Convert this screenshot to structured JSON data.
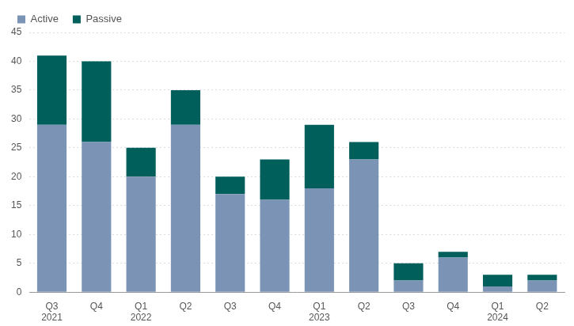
{
  "chart_data": {
    "type": "bar",
    "stacked": true,
    "categories": [
      "Q3\n2021",
      "Q4",
      "Q1\n2022",
      "Q2",
      "Q3",
      "Q4",
      "Q1\n2023",
      "Q2",
      "Q3",
      "Q4",
      "Q1\n2024",
      "Q2"
    ],
    "series": [
      {
        "name": "Active",
        "color": "#7b94b5",
        "values": [
          29,
          26,
          20,
          29,
          17,
          16,
          18,
          23,
          2,
          6,
          1,
          2
        ]
      },
      {
        "name": "Passive",
        "color": "#005e5b",
        "values": [
          12,
          14,
          5,
          6,
          3,
          7,
          11,
          3,
          3,
          1,
          2,
          1
        ]
      }
    ],
    "ylim": [
      0,
      45
    ],
    "yticks": [
      0,
      5,
      10,
      15,
      20,
      25,
      30,
      35,
      40,
      45
    ],
    "grid": true,
    "legend": "top-left"
  }
}
